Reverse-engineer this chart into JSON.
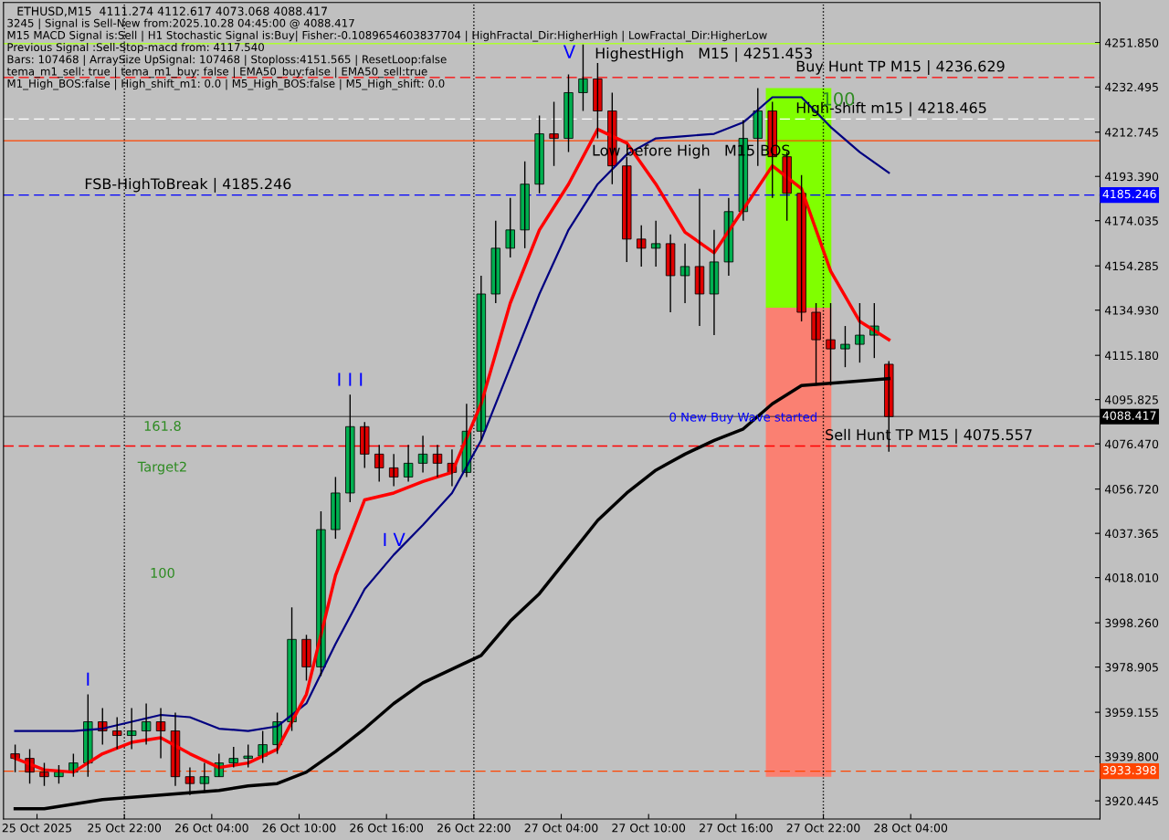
{
  "chart_data": {
    "type": "candlestick",
    "title": "ETHUSD,M15  4111.274 4112.617 4073.068 4088.417",
    "annotations": [
      "3245 | Signal is Sell-New from:2025.10.28 04:45:00 @ 4088.417",
      "M15 MACD Signal is:Sell | H1 Stochastic Signal is:Buy| Fisher:-0.1089654603837704 | HighFractal_Dir:HigherHigh | LowFractal_Dir:HigherLow",
      "Previous Signal :Sell-Stop-macd from: 4117.540",
      "Bars: 107468 | ArraySize UpSignal: 107468 | Stoploss:4151.565 | ResetLoop:false",
      "tema_m1_sell: true | tema_m1_buy: false | EMA50_buy:false | EMA50_sell:true",
      "M1_High_BOS:false | High_shift_m1: 0.0 | M5_High_BOS:false | M5_High_shift: 0.0",
      "161.8",
      "Target2",
      "100",
      {
        "text": "HighestHigh   M15 | 4251.453",
        "x": "2025-10-27T06:18",
        "y": 4251.453
      },
      {
        "text": "Buy Hunt TP M15 | 4236.629",
        "x": "2025-10-27T20:06",
        "y": 4236.629
      },
      {
        "text": "High-shift m15 | 4218.465",
        "x": "2025-10-27T20:06",
        "y": 4218.465
      },
      {
        "text": "Low before High   M15 BOS",
        "x": "2025-10-27T06:06",
        "y": 4209
      },
      {
        "text": "FSB-HighToBreak | 4185.246",
        "x": "2025-10-25T19:15",
        "y": 4185.246
      },
      {
        "text": "Sell Hunt TP M15 | 4075.557",
        "x": "2025-10-27T22:06",
        "y": 4075.557
      },
      {
        "text": "0 New Buy Wave started",
        "x": "2025-10-27T16:30",
        "y": 4083
      },
      {
        "text": "I",
        "x": "2025-10-25T19:30",
        "y": 3967
      },
      {
        "text": "I I I",
        "x": "2025-10-26T13:30",
        "y": 4098
      },
      {
        "text": "I V",
        "x": "2025-10-26T16:30",
        "y": 4028
      },
      {
        "text": "V",
        "x": "2025-10-27T05:30",
        "y": 4251
      },
      {
        "text": "100",
        "x": "2025-10-27T20:18",
        "y": 4232
      }
    ],
    "x": [
      "2025-10-25T14:30",
      "2025-10-25T15:30",
      "2025-10-25T16:30",
      "2025-10-25T17:30",
      "2025-10-25T18:30",
      "2025-10-25T19:30",
      "2025-10-25T20:30",
      "2025-10-25T21:30",
      "2025-10-25T22:30",
      "2025-10-25T23:30",
      "2025-10-26T00:30",
      "2025-10-26T01:30",
      "2025-10-26T02:30",
      "2025-10-26T03:30",
      "2025-10-26T04:30",
      "2025-10-26T05:30",
      "2025-10-26T06:30",
      "2025-10-26T07:30",
      "2025-10-26T08:30",
      "2025-10-26T09:30",
      "2025-10-26T10:30",
      "2025-10-26T11:30",
      "2025-10-26T12:30",
      "2025-10-26T13:30",
      "2025-10-26T14:30",
      "2025-10-26T15:30",
      "2025-10-26T16:30",
      "2025-10-26T17:30",
      "2025-10-26T18:30",
      "2025-10-26T19:30",
      "2025-10-26T20:30",
      "2025-10-26T21:30",
      "2025-10-26T22:30",
      "2025-10-26T23:30",
      "2025-10-27T00:30",
      "2025-10-27T01:30",
      "2025-10-27T02:30",
      "2025-10-27T03:30",
      "2025-10-27T04:30",
      "2025-10-27T05:30",
      "2025-10-27T06:30",
      "2025-10-27T07:30",
      "2025-10-27T08:30",
      "2025-10-27T09:30",
      "2025-10-27T10:30",
      "2025-10-27T11:30",
      "2025-10-27T12:30",
      "2025-10-27T13:30",
      "2025-10-27T14:30",
      "2025-10-27T15:30",
      "2025-10-27T16:30",
      "2025-10-27T17:30",
      "2025-10-27T18:30",
      "2025-10-27T19:30",
      "2025-10-27T20:30",
      "2025-10-27T21:30",
      "2025-10-27T22:30",
      "2025-10-27T23:30",
      "2025-10-28T00:30",
      "2025-10-28T01:30",
      "2025-10-28T02:30"
    ],
    "ohlc": [
      [
        3941,
        3945,
        3933,
        3939
      ],
      [
        3939,
        3943,
        3928,
        3933
      ],
      [
        3933,
        3937,
        3927,
        3931
      ],
      [
        3931,
        3936,
        3928,
        3933
      ],
      [
        3933,
        3941,
        3931,
        3937
      ],
      [
        3937,
        3967,
        3931,
        3955
      ],
      [
        3955,
        3961,
        3945,
        3951
      ],
      [
        3951,
        3957,
        3943,
        3949
      ],
      [
        3949,
        3961,
        3943,
        3951
      ],
      [
        3951,
        3963,
        3945,
        3955
      ],
      [
        3955,
        3961,
        3939,
        3951
      ],
      [
        3951,
        3959,
        3927,
        3931
      ],
      [
        3931,
        3935,
        3923,
        3928
      ],
      [
        3928,
        3937,
        3924,
        3931
      ],
      [
        3931,
        3941,
        3931,
        3937
      ],
      [
        3937,
        3944,
        3935,
        3939
      ],
      [
        3939,
        3945,
        3935,
        3940
      ],
      [
        3940,
        3951,
        3937,
        3945
      ],
      [
        3945,
        3959,
        3941,
        3955
      ],
      [
        3955,
        4005,
        3951,
        3991
      ],
      [
        3991,
        3993,
        3973,
        3979
      ],
      [
        3979,
        4047,
        3975,
        4039
      ],
      [
        4039,
        4062,
        4035,
        4055
      ],
      [
        4055,
        4098,
        4051,
        4084
      ],
      [
        4084,
        4086,
        4066,
        4072
      ],
      [
        4072,
        4076,
        4060,
        4066
      ],
      [
        4066,
        4072,
        4058,
        4062
      ],
      [
        4062,
        4076,
        4060,
        4068
      ],
      [
        4068,
        4080,
        4064,
        4072
      ],
      [
        4072,
        4076,
        4062,
        4068
      ],
      [
        4068,
        4074,
        4058,
        4064
      ],
      [
        4064,
        4094,
        4062,
        4082
      ],
      [
        4082,
        4150,
        4078,
        4142
      ],
      [
        4142,
        4174,
        4138,
        4162
      ],
      [
        4162,
        4184,
        4158,
        4170
      ],
      [
        4170,
        4200,
        4162,
        4190
      ],
      [
        4190,
        4220,
        4186,
        4212
      ],
      [
        4212,
        4226,
        4198,
        4210
      ],
      [
        4210,
        4238,
        4204,
        4230
      ],
      [
        4230,
        4251,
        4222,
        4236
      ],
      [
        4236,
        4243,
        4210,
        4222
      ],
      [
        4222,
        4230,
        4190,
        4198
      ],
      [
        4198,
        4202,
        4156,
        4166
      ],
      [
        4166,
        4172,
        4154,
        4162
      ],
      [
        4162,
        4174,
        4154,
        4164
      ],
      [
        4164,
        4168,
        4134,
        4150
      ],
      [
        4150,
        4164,
        4138,
        4154
      ],
      [
        4154,
        4188,
        4128,
        4142
      ],
      [
        4142,
        4170,
        4124,
        4156
      ],
      [
        4156,
        4184,
        4150,
        4178
      ],
      [
        4178,
        4218,
        4174,
        4210
      ],
      [
        4210,
        4232,
        4198,
        4222
      ],
      [
        4222,
        4226,
        4184,
        4202
      ],
      [
        4202,
        4204,
        4174,
        4186
      ],
      [
        4186,
        4194,
        4130,
        4134
      ],
      [
        4134,
        4138,
        4102,
        4122
      ],
      [
        4122,
        4138,
        4102,
        4118
      ],
      [
        4118,
        4128,
        4110,
        4120
      ],
      [
        4120,
        4138,
        4112,
        4124
      ],
      [
        4124,
        4138,
        4114,
        4128
      ],
      [
        4111.274,
        4112.617,
        4073.068,
        4088.417
      ]
    ],
    "colors": [
      "#e00000",
      "#e00000",
      "#e00000",
      "#00b050",
      "#00b050",
      "#00b050",
      "#e00000",
      "#e00000",
      "#00b050",
      "#00b050",
      "#e00000",
      "#e00000",
      "#e00000",
      "#00b050",
      "#00b050",
      "#00b050",
      "#00b050",
      "#00b050",
      "#00b050",
      "#00b050",
      "#e00000",
      "#00b050",
      "#00b050",
      "#00b050",
      "#e00000",
      "#e00000",
      "#e00000",
      "#00b050",
      "#00b050",
      "#e00000",
      "#e00000",
      "#00b050",
      "#00b050",
      "#00b050",
      "#00b050",
      "#00b050",
      "#00b050",
      "#e00000",
      "#00b050",
      "#00b050",
      "#e00000",
      "#e00000",
      "#e00000",
      "#e00000",
      "#00b050",
      "#e00000",
      "#00b050",
      "#e00000",
      "#00b050",
      "#00b050",
      "#00b050",
      "#00b050",
      "#e00000",
      "#e00000",
      "#e00000",
      "#e00000",
      "#e00000",
      "#00b050",
      "#00b050",
      "#00b050",
      "#e00000"
    ],
    "series": [
      {
        "type": "bar",
        "color": "#80ff00",
        "x": [
          "2025-10-27T20:18"
        ],
        "base": [
          4136
        ],
        "values": [
          96
        ]
      },
      {
        "type": "bar",
        "color": "#fa8072",
        "x": [
          "2025-10-27T20:18"
        ],
        "base": [
          3931
        ],
        "values": [
          205
        ]
      },
      {
        "type": "line",
        "color": "#000000",
        "x": [
          "2025-10-25T14:30",
          "2025-10-25T16:30",
          "2025-10-25T18:30",
          "2025-10-25T20:30",
          "2025-10-25T22:30",
          "2025-10-26T00:30",
          "2025-10-26T02:30",
          "2025-10-26T04:30",
          "2025-10-26T06:30",
          "2025-10-26T08:30",
          "2025-10-26T10:30",
          "2025-10-26T12:30",
          "2025-10-26T14:30",
          "2025-10-26T16:30",
          "2025-10-26T18:30",
          "2025-10-26T20:30",
          "2025-10-26T22:30",
          "2025-10-27T00:30",
          "2025-10-27T02:30",
          "2025-10-27T04:30",
          "2025-10-27T06:30",
          "2025-10-27T08:30",
          "2025-10-27T10:30",
          "2025-10-27T12:30",
          "2025-10-27T14:30",
          "2025-10-27T16:30",
          "2025-10-27T18:30",
          "2025-10-27T20:30",
          "2025-10-27T22:30",
          "2025-10-28T00:30",
          "2025-10-28T02:30"
        ],
        "values": [
          3917,
          3917,
          3919,
          3921,
          3922,
          3923,
          3924,
          3925,
          3927,
          3928,
          3933,
          3942,
          3952,
          3963,
          3972,
          3978,
          3984,
          3999,
          4011,
          4027,
          4043,
          4055,
          4065,
          4072,
          4078,
          4083,
          4094,
          4102,
          4103,
          4104,
          4105
        ]
      },
      {
        "type": "line",
        "color": "#000080",
        "x": [
          "2025-10-25T14:30",
          "2025-10-25T16:30",
          "2025-10-25T18:30",
          "2025-10-25T20:30",
          "2025-10-25T22:30",
          "2025-10-26T00:30",
          "2025-10-26T02:30",
          "2025-10-26T04:30",
          "2025-10-26T06:30",
          "2025-10-26T08:30",
          "2025-10-26T10:30",
          "2025-10-26T12:30",
          "2025-10-26T14:30",
          "2025-10-26T16:30",
          "2025-10-26T18:30",
          "2025-10-26T20:30",
          "2025-10-26T22:30",
          "2025-10-27T00:30",
          "2025-10-27T02:30",
          "2025-10-27T04:30",
          "2025-10-27T06:30",
          "2025-10-27T08:30",
          "2025-10-27T10:30",
          "2025-10-27T12:30",
          "2025-10-27T14:30",
          "2025-10-27T16:30",
          "2025-10-27T18:30",
          "2025-10-27T20:30",
          "2025-10-27T22:30",
          "2025-10-28T00:30",
          "2025-10-28T02:30"
        ],
        "values": [
          3951,
          3951,
          3951,
          3952,
          3955,
          3958,
          3957,
          3952,
          3951,
          3953,
          3963,
          3989,
          4013,
          4028,
          4041,
          4055,
          4078,
          4110,
          4142,
          4170,
          4190,
          4203,
          4210,
          4211,
          4212,
          4217,
          4228,
          4228,
          4215,
          4204,
          4195
        ]
      },
      {
        "type": "line",
        "color": "#ff0000",
        "x": [
          "2025-10-25T14:30",
          "2025-10-25T16:30",
          "2025-10-25T18:30",
          "2025-10-25T20:30",
          "2025-10-25T22:30",
          "2025-10-26T00:30",
          "2025-10-26T02:30",
          "2025-10-26T04:30",
          "2025-10-26T06:30",
          "2025-10-26T08:30",
          "2025-10-26T10:30",
          "2025-10-26T12:30",
          "2025-10-26T14:30",
          "2025-10-26T16:30",
          "2025-10-26T18:30",
          "2025-10-26T20:30",
          "2025-10-26T22:30",
          "2025-10-27T00:30",
          "2025-10-27T02:30",
          "2025-10-27T04:30",
          "2025-10-27T06:30",
          "2025-10-27T08:30",
          "2025-10-27T10:30",
          "2025-10-27T12:30",
          "2025-10-27T14:30",
          "2025-10-27T16:30",
          "2025-10-27T18:30",
          "2025-10-27T20:30",
          "2025-10-27T22:30",
          "2025-10-28T00:30",
          "2025-10-28T02:30"
        ],
        "values": [
          3939,
          3934,
          3933,
          3941,
          3946,
          3948,
          3941,
          3935,
          3937,
          3943,
          3967,
          4019,
          4052,
          4055,
          4060,
          4064,
          4094,
          4138,
          4170,
          4190,
          4214,
          4208,
          4190,
          4169,
          4160,
          4179,
          4198,
          4188,
          4152,
          4130,
          4122
        ]
      }
    ],
    "ref_lines": [
      {
        "axis": "y",
        "value": 4185.246,
        "label": "4185.246",
        "color": "#0000ff",
        "line_style": "dashed"
      },
      {
        "axis": "y",
        "value": 4088.417,
        "label": "4088.417",
        "color": "#000000",
        "line_style": "solid"
      },
      {
        "axis": "y",
        "value": 3933.398,
        "label": "3933.398",
        "color": "#ff4500",
        "line_style": "dashed"
      },
      {
        "axis": "y",
        "value": 4236.629,
        "label": null,
        "color": "#ff0000",
        "line_style": "dashed"
      },
      {
        "axis": "y",
        "value": 4075.557,
        "label": null,
        "color": "#ff0000",
        "line_style": "dashed"
      },
      {
        "axis": "y",
        "value": 4218.465,
        "label": null,
        "color": "#ffffff",
        "line_style": "dashed"
      },
      {
        "axis": "y",
        "value": 4251.453,
        "label": null,
        "color": "#adff2f",
        "line_style": "solid"
      },
      {
        "axis": "y",
        "value": 4209,
        "label": null,
        "color": "#ff4500",
        "line_style": "solid"
      },
      {
        "axis": "x",
        "value": "2025-10-25T22:00",
        "label": null,
        "color": "#000000",
        "line_style": "dotted"
      },
      {
        "axis": "x",
        "value": "2025-10-26T22:00",
        "label": null,
        "color": "#000000",
        "line_style": "dotted"
      },
      {
        "axis": "x",
        "value": "2025-10-27T22:00",
        "label": null,
        "color": "#000000",
        "line_style": "dotted"
      }
    ],
    "xlim": [
      "2025-10-25T13:42",
      "2025-10-28T17:00"
    ],
    "xticks": [
      {
        "value": "2025-10-25T16:00",
        "label": "25 Oct 2025"
      },
      {
        "value": "2025-10-25T22:00",
        "label": "25 Oct 22:00"
      },
      {
        "value": "2025-10-26T04:00",
        "label": "26 Oct 04:00"
      },
      {
        "value": "2025-10-26T10:00",
        "label": "26 Oct 10:00"
      },
      {
        "value": "2025-10-26T16:00",
        "label": "26 Oct 16:00"
      },
      {
        "value": "2025-10-26T22:00",
        "label": "26 Oct 22:00"
      },
      {
        "value": "2025-10-27T04:00",
        "label": "27 Oct 04:00"
      },
      {
        "value": "2025-10-27T10:00",
        "label": "27 Oct 10:00"
      },
      {
        "value": "2025-10-27T16:00",
        "label": "27 Oct 16:00"
      },
      {
        "value": "2025-10-27T22:00",
        "label": "27 Oct 22:00"
      },
      {
        "value": "2025-10-28T04:00",
        "label": "28 Oct 04:00"
      }
    ],
    "ylim": [
      3912.5,
      4269.4
    ],
    "yticks": [
      {
        "value": 4251.85,
        "label": "4251.850"
      },
      {
        "value": 4232.495,
        "label": "4232.495"
      },
      {
        "value": 4212.745,
        "label": "4212.745"
      },
      {
        "value": 4193.39,
        "label": "4193.390"
      },
      {
        "value": 4174.035,
        "label": "4174.035"
      },
      {
        "value": 4154.285,
        "label": "4154.285"
      },
      {
        "value": 4134.93,
        "label": "4134.930"
      },
      {
        "value": 4115.18,
        "label": "4115.180"
      },
      {
        "value": 4095.825,
        "label": "4095.825"
      },
      {
        "value": 4076.47,
        "label": "4076.470"
      },
      {
        "value": 4056.72,
        "label": "4056.720"
      },
      {
        "value": 4037.365,
        "label": "4037.365"
      },
      {
        "value": 4018.01,
        "label": "4018.010"
      },
      {
        "value": 3998.26,
        "label": "3998.260"
      },
      {
        "value": 3978.905,
        "label": "3978.905"
      },
      {
        "value": 3959.155,
        "label": "3959.155"
      },
      {
        "value": 3939.8,
        "label": "3939.800"
      },
      {
        "value": 3920.445,
        "label": "3920.445"
      }
    ],
    "grid": false,
    "legend": false
  }
}
